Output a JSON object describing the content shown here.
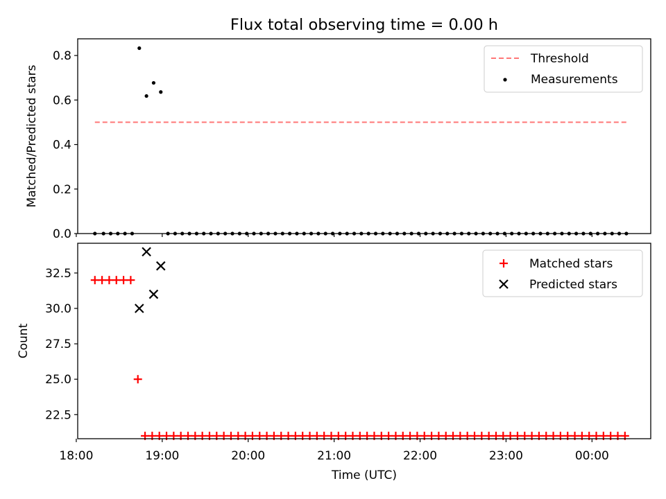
{
  "chart_data": [
    {
      "type": "scatter",
      "title": "Flux total observing time = 0.00 h",
      "xlabel": "",
      "ylabel": "Matched/Predicted stars",
      "ylim": [
        0.0,
        0.875
      ],
      "yticks": [
        "0.0",
        "0.2",
        "0.4",
        "0.6",
        "0.8"
      ],
      "legend_position": "top-right",
      "legend": [
        "Threshold",
        "Measurements"
      ],
      "threshold": {
        "name": "Threshold",
        "value": 0.5,
        "x_range": [
          "18:13",
          "00:25"
        ],
        "color": "#ff7777",
        "style": "dashed"
      },
      "series": [
        {
          "name": "Measurements",
          "color": "#000000",
          "points": [
            [
              "18:13",
              0.0
            ],
            [
              "18:19",
              0.0
            ],
            [
              "18:24",
              0.0
            ],
            [
              "18:29",
              0.0
            ],
            [
              "18:34",
              0.0
            ],
            [
              "18:39",
              0.0
            ],
            [
              "18:44",
              0.833
            ],
            [
              "18:49",
              0.618
            ],
            [
              "18:54",
              0.677
            ],
            [
              "18:59",
              0.636
            ],
            [
              "19:04",
              0.0
            ],
            [
              "19:09",
              0.0
            ],
            [
              "19:14",
              0.0
            ],
            [
              "19:19",
              0.0
            ],
            [
              "19:24",
              0.0
            ],
            [
              "19:29",
              0.0
            ],
            [
              "19:34",
              0.0
            ],
            [
              "19:39",
              0.0
            ],
            [
              "19:44",
              0.0
            ],
            [
              "19:49",
              0.0
            ],
            [
              "19:54",
              0.0
            ],
            [
              "19:59",
              0.0
            ],
            [
              "20:04",
              0.0
            ],
            [
              "20:09",
              0.0
            ],
            [
              "20:14",
              0.0
            ],
            [
              "20:19",
              0.0
            ],
            [
              "20:24",
              0.0
            ],
            [
              "20:29",
              0.0
            ],
            [
              "20:34",
              0.0
            ],
            [
              "20:39",
              0.0
            ],
            [
              "20:44",
              0.0
            ],
            [
              "20:49",
              0.0
            ],
            [
              "20:54",
              0.0
            ],
            [
              "20:59",
              0.0
            ],
            [
              "21:04",
              0.0
            ],
            [
              "21:09",
              0.0
            ],
            [
              "21:14",
              0.0
            ],
            [
              "21:19",
              0.0
            ],
            [
              "21:24",
              0.0
            ],
            [
              "21:29",
              0.0
            ],
            [
              "21:34",
              0.0
            ],
            [
              "21:39",
              0.0
            ],
            [
              "21:44",
              0.0
            ],
            [
              "21:49",
              0.0
            ],
            [
              "21:54",
              0.0
            ],
            [
              "21:59",
              0.0
            ],
            [
              "22:04",
              0.0
            ],
            [
              "22:09",
              0.0
            ],
            [
              "22:14",
              0.0
            ],
            [
              "22:19",
              0.0
            ],
            [
              "22:24",
              0.0
            ],
            [
              "22:29",
              0.0
            ],
            [
              "22:34",
              0.0
            ],
            [
              "22:39",
              0.0
            ],
            [
              "22:44",
              0.0
            ],
            [
              "22:49",
              0.0
            ],
            [
              "22:54",
              0.0
            ],
            [
              "22:59",
              0.0
            ],
            [
              "23:04",
              0.0
            ],
            [
              "23:09",
              0.0
            ],
            [
              "23:14",
              0.0
            ],
            [
              "23:19",
              0.0
            ],
            [
              "23:24",
              0.0
            ],
            [
              "23:29",
              0.0
            ],
            [
              "23:34",
              0.0
            ],
            [
              "23:39",
              0.0
            ],
            [
              "23:44",
              0.0
            ],
            [
              "23:49",
              0.0
            ],
            [
              "23:54",
              0.0
            ],
            [
              "23:59",
              0.0
            ],
            [
              "00:04",
              0.0
            ],
            [
              "00:09",
              0.0
            ],
            [
              "00:14",
              0.0
            ],
            [
              "00:19",
              0.0
            ],
            [
              "00:24",
              0.0
            ]
          ]
        }
      ]
    },
    {
      "type": "scatter",
      "title": "",
      "xlabel": "Time (UTC)",
      "ylabel": "Count",
      "xlim": [
        "18:01",
        "00:41"
      ],
      "xticks": [
        "18:00",
        "19:00",
        "20:00",
        "21:00",
        "22:00",
        "23:00",
        "00:00"
      ],
      "ylim": [
        20.8,
        34.6
      ],
      "yticks": [
        "22.5",
        "25.0",
        "27.5",
        "30.0",
        "32.5"
      ],
      "legend_position": "top-right",
      "legend": [
        "Matched stars",
        "Predicted stars"
      ],
      "series": [
        {
          "name": "Matched stars",
          "marker": "plus",
          "color": "#ff0000",
          "points": [
            [
              "18:13",
              32
            ],
            [
              "18:18",
              32
            ],
            [
              "18:23",
              32
            ],
            [
              "18:28",
              32
            ],
            [
              "18:33",
              32
            ],
            [
              "18:38",
              32
            ],
            [
              "18:43",
              25
            ],
            [
              "18:48",
              21
            ],
            [
              "18:53",
              21
            ],
            [
              "18:58",
              21
            ],
            [
              "19:03",
              21
            ],
            [
              "19:08",
              21
            ],
            [
              "19:13",
              21
            ],
            [
              "19:18",
              21
            ],
            [
              "19:23",
              21
            ],
            [
              "19:28",
              21
            ],
            [
              "19:33",
              21
            ],
            [
              "19:38",
              21
            ],
            [
              "19:43",
              21
            ],
            [
              "19:48",
              21
            ],
            [
              "19:53",
              21
            ],
            [
              "19:58",
              21
            ],
            [
              "20:03",
              21
            ],
            [
              "20:08",
              21
            ],
            [
              "20:13",
              21
            ],
            [
              "20:18",
              21
            ],
            [
              "20:23",
              21
            ],
            [
              "20:28",
              21
            ],
            [
              "20:33",
              21
            ],
            [
              "20:38",
              21
            ],
            [
              "20:43",
              21
            ],
            [
              "20:48",
              21
            ],
            [
              "20:53",
              21
            ],
            [
              "20:58",
              21
            ],
            [
              "21:03",
              21
            ],
            [
              "21:08",
              21
            ],
            [
              "21:13",
              21
            ],
            [
              "21:18",
              21
            ],
            [
              "21:23",
              21
            ],
            [
              "21:28",
              21
            ],
            [
              "21:33",
              21
            ],
            [
              "21:38",
              21
            ],
            [
              "21:43",
              21
            ],
            [
              "21:48",
              21
            ],
            [
              "21:53",
              21
            ],
            [
              "21:58",
              21
            ],
            [
              "22:03",
              21
            ],
            [
              "22:08",
              21
            ],
            [
              "22:13",
              21
            ],
            [
              "22:18",
              21
            ],
            [
              "22:23",
              21
            ],
            [
              "22:28",
              21
            ],
            [
              "22:33",
              21
            ],
            [
              "22:38",
              21
            ],
            [
              "22:43",
              21
            ],
            [
              "22:48",
              21
            ],
            [
              "22:53",
              21
            ],
            [
              "22:58",
              21
            ],
            [
              "23:03",
              21
            ],
            [
              "23:08",
              21
            ],
            [
              "23:13",
              21
            ],
            [
              "23:18",
              21
            ],
            [
              "23:23",
              21
            ],
            [
              "23:28",
              21
            ],
            [
              "23:33",
              21
            ],
            [
              "23:38",
              21
            ],
            [
              "23:43",
              21
            ],
            [
              "23:48",
              21
            ],
            [
              "23:53",
              21
            ],
            [
              "23:58",
              21
            ],
            [
              "00:03",
              21
            ],
            [
              "00:08",
              21
            ],
            [
              "00:13",
              21
            ],
            [
              "00:18",
              21
            ],
            [
              "00:23",
              21
            ]
          ]
        },
        {
          "name": "Predicted stars",
          "marker": "x",
          "color": "#000000",
          "points": [
            [
              "18:44",
              30
            ],
            [
              "18:49",
              34
            ],
            [
              "18:54",
              31
            ],
            [
              "18:59",
              33
            ]
          ]
        }
      ]
    }
  ]
}
